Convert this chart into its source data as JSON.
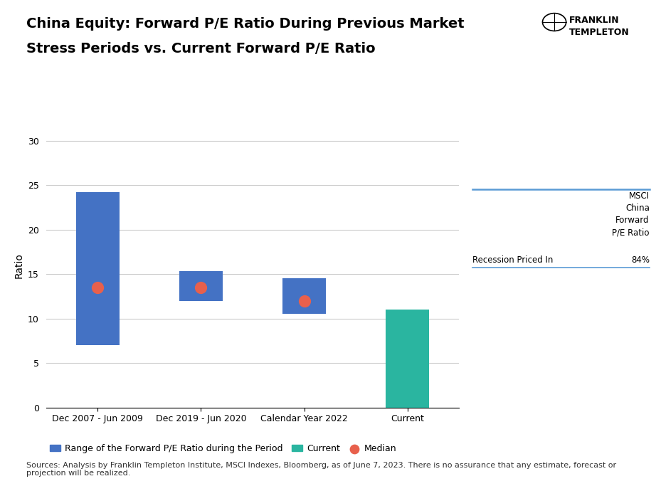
{
  "title_line1": "China Equity: Forward P/E Ratio During Previous Market",
  "title_line2": "Stress Periods vs. Current Forward P/E Ratio",
  "categories": [
    "Dec 2007 - Jun 2009",
    "Dec 2019 - Jun 2020",
    "Calendar Year 2022",
    "Current"
  ],
  "bar_bottoms": [
    7.0,
    12.0,
    10.5,
    0.0
  ],
  "bar_tops": [
    24.2,
    15.3,
    14.5,
    11.0
  ],
  "bar_colors": [
    "#4472C4",
    "#4472C4",
    "#4472C4",
    "#2AB5A0"
  ],
  "medians": [
    13.5,
    13.5,
    12.0,
    null
  ],
  "median_color": "#E8604C",
  "median_size": 130,
  "ylabel": "Ratio",
  "ylim": [
    0,
    32
  ],
  "yticks": [
    0,
    5,
    10,
    15,
    20,
    25,
    30
  ],
  "grid_color": "#CCCCCC",
  "background_color": "#FFFFFF",
  "legend_labels": [
    "Range of the Forward P/E Ratio during the Period",
    "Current",
    "Median"
  ],
  "legend_colors": [
    "#4472C4",
    "#2AB5A0",
    "#E8604C"
  ],
  "table_header": "MSCI\nChina\nForward\nP/E Ratio",
  "table_row_label": "Recession Priced In",
  "table_row_value": "84%",
  "table_line_color": "#5B9BD5",
  "footnote": "Sources: Analysis by Franklin Templeton Institute, MSCI Indexes, Bloomberg, as of June 7, 2023. There is no assurance that any estimate, forecast or\nprojection will be realized.",
  "title_fontsize": 14,
  "axis_fontsize": 10,
  "tick_fontsize": 9,
  "legend_fontsize": 9,
  "footnote_fontsize": 8,
  "ft_text": "FRANKLIN\nTEMPLETON",
  "ft_fontsize": 9
}
